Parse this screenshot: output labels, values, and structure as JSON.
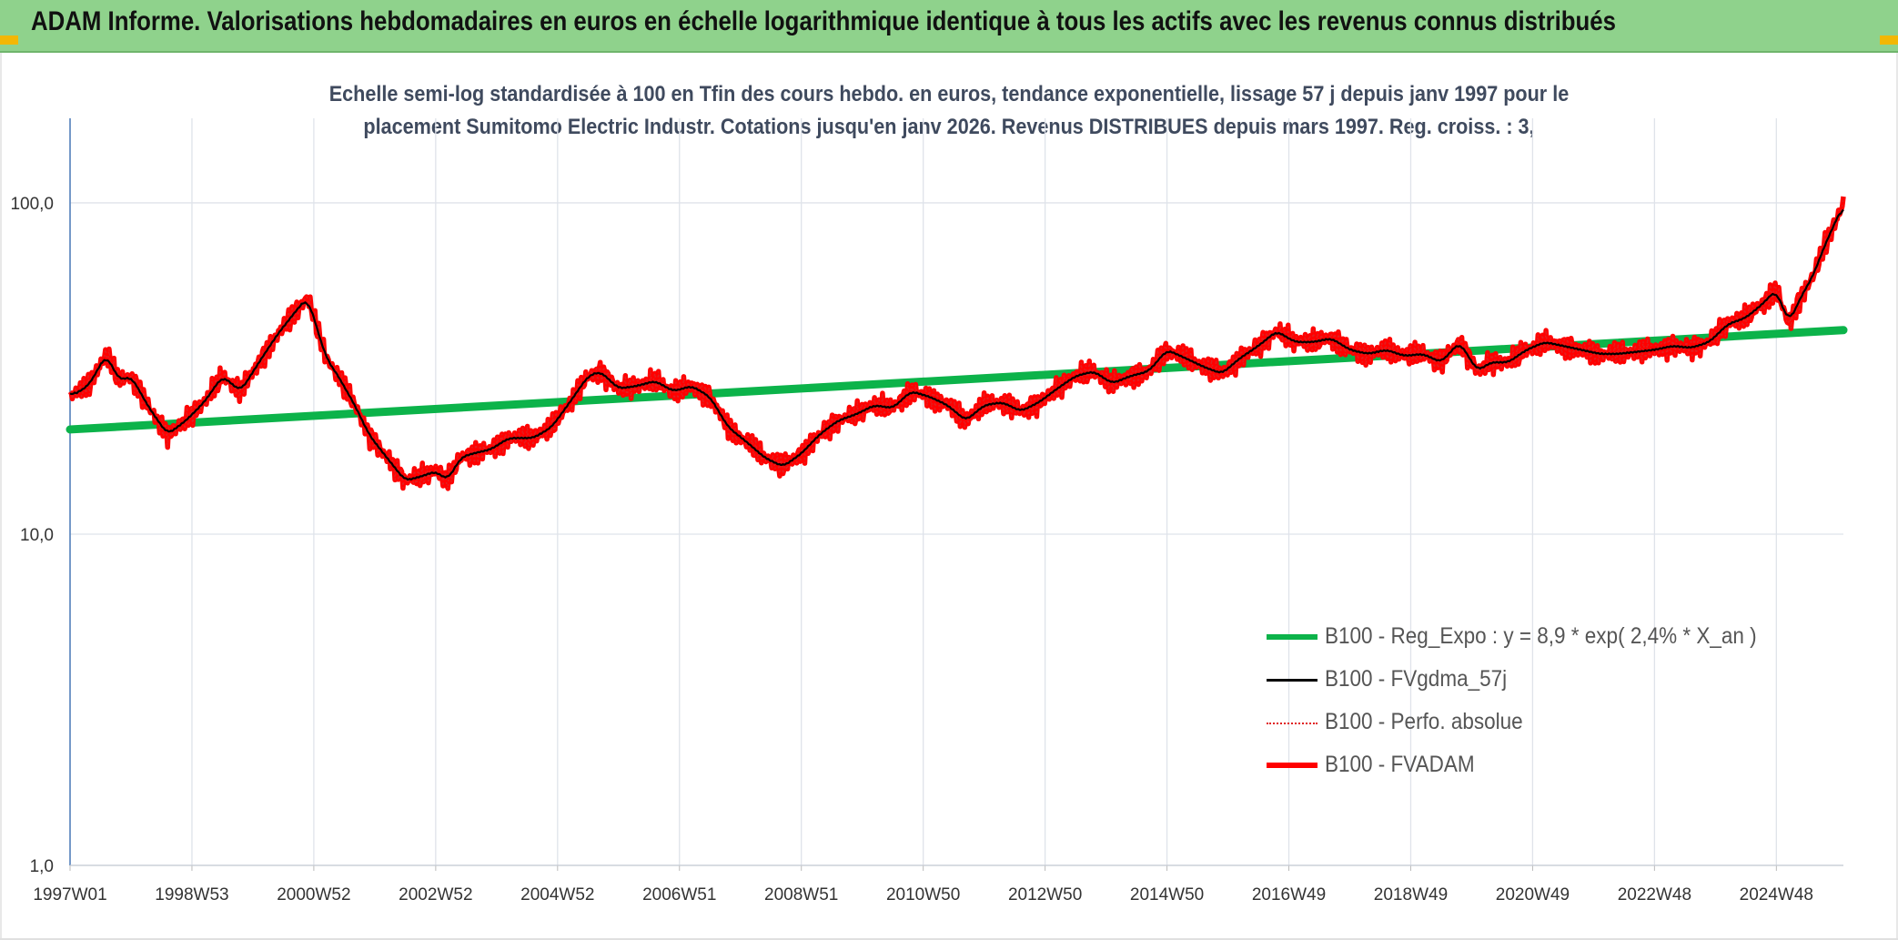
{
  "header": {
    "title": "ADAM Informe. Valorisations hebdomadaires en euros en échelle logarithmique identique à tous les actifs avec les revenus connus distribués"
  },
  "subtitle": {
    "line1": "Echelle semi-log standardisée à 100 en Tfin des cours hebdo. en euros, tendance exponentielle, lissage 57 j depuis janv 1997 pour le",
    "line2": "placement Sumitomo Electric Industr. Cotations jusqu'en janv 2026. Revenus DISTRIBUES depuis mars 1997. Reg. croiss. : 3,"
  },
  "colors": {
    "header_bg": "#8fd28c",
    "green": "#0cb34a",
    "red": "#ff0000",
    "black": "#000000",
    "axis": "#4a7ab8",
    "grid": "#dfe3ea"
  },
  "chart_data": {
    "type": "line",
    "yscale": "log",
    "ylim": [
      1,
      180
    ],
    "yticks": [
      "100,0",
      "10,0",
      "1,0"
    ],
    "ytick_values": [
      100,
      10,
      1
    ],
    "xlim": [
      1997.0,
      2026.1
    ],
    "xticks": [
      "1997W01",
      "1998W53",
      "2000W52",
      "2002W52",
      "2004W52",
      "2006W51",
      "2008W51",
      "2010W50",
      "2012W50",
      "2014W50",
      "2016W49",
      "2018W49",
      "2020W49",
      "2022W48",
      "2024W48"
    ],
    "xtick_values": [
      1997.0,
      1999.0,
      2001.0,
      2003.0,
      2005.0,
      2007.0,
      2009.0,
      2011.0,
      2013.0,
      2015.0,
      2017.0,
      2019.0,
      2021.0,
      2023.0,
      2025.0
    ],
    "series": [
      {
        "name": "B100 - Reg_Expo : y = 8,9 * exp( 2,4% *  X_an )",
        "role": "trend",
        "color": "#0cb34a",
        "x": [
          1997.0,
          2026.1
        ],
        "y": [
          20.7,
          41.3
        ]
      },
      {
        "name": "B100 - FVgdma_57j",
        "role": "smooth",
        "color": "#000000"
      },
      {
        "name": "B100 - Perfo. absolue",
        "role": "dotted",
        "color": "#e02020"
      },
      {
        "name": "B100 - FVADAM",
        "role": "main",
        "color": "#ff0000",
        "x": [
          1997.0,
          1997.3,
          1997.6,
          1997.8,
          1998.0,
          1998.3,
          1998.6,
          1998.9,
          1999.2,
          1999.5,
          1999.8,
          2000.1,
          2000.4,
          2000.7,
          2000.9,
          2001.0,
          2001.2,
          2001.4,
          2001.7,
          2001.9,
          2002.2,
          2002.5,
          2002.8,
          2003.0,
          2003.2,
          2003.4,
          2003.6,
          2003.9,
          2004.2,
          2004.6,
          2004.9,
          2005.2,
          2005.5,
          2005.7,
          2006.0,
          2006.3,
          2006.6,
          2006.9,
          2007.2,
          2007.5,
          2007.8,
          2008.1,
          2008.4,
          2008.7,
          2009.0,
          2009.3,
          2009.6,
          2009.9,
          2010.2,
          2010.5,
          2010.8,
          2011.1,
          2011.4,
          2011.7,
          2012.0,
          2012.3,
          2012.6,
          2012.9,
          2013.2,
          2013.5,
          2013.8,
          2014.1,
          2014.4,
          2014.7,
          2015.0,
          2015.3,
          2015.6,
          2015.9,
          2016.2,
          2016.5,
          2016.8,
          2017.1,
          2017.4,
          2017.7,
          2018.0,
          2018.3,
          2018.6,
          2018.9,
          2019.2,
          2019.5,
          2019.8,
          2020.1,
          2020.3,
          2020.6,
          2020.9,
          2021.2,
          2021.5,
          2021.8,
          2022.1,
          2022.4,
          2022.7,
          2023.0,
          2023.3,
          2023.6,
          2023.9,
          2024.2,
          2024.5,
          2024.8,
          2025.0,
          2025.2,
          2025.4,
          2025.6,
          2025.8,
          2026.0,
          2026.1
        ],
        "y": [
          26,
          28,
          35,
          29,
          30,
          24,
          20,
          22,
          25,
          30,
          27,
          33,
          40,
          47,
          52,
          45,
          34,
          30,
          24,
          20,
          17,
          14.5,
          15,
          15.5,
          14.5,
          17,
          17.5,
          18,
          19.5,
          19.5,
          21,
          25,
          30,
          31,
          27.5,
          28,
          29,
          27,
          28,
          26,
          21,
          19,
          17,
          16,
          17.5,
          20,
          22,
          23,
          24.5,
          24,
          27,
          26,
          24.5,
          22,
          24.5,
          25,
          23.5,
          25,
          27.5,
          30,
          31,
          28.5,
          30,
          31,
          36,
          34,
          32,
          30.5,
          34,
          37,
          41,
          38,
          38,
          39,
          36,
          35,
          36,
          34.5,
          35,
          33,
          38,
          31,
          33,
          33,
          36,
          38,
          37,
          36,
          35,
          35,
          35.5,
          36,
          37,
          36.5,
          38,
          43,
          45,
          50,
          55,
          43,
          52,
          60,
          75,
          90,
          100
        ]
      }
    ]
  }
}
